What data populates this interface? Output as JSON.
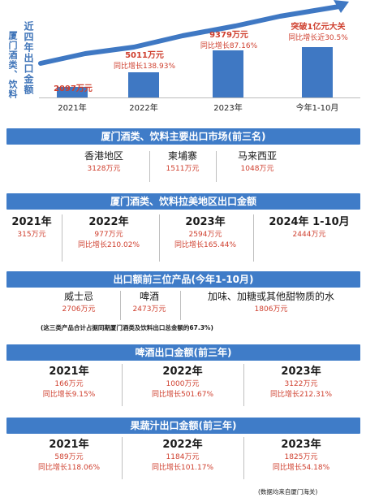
{
  "top_chart": {
    "title_col1": "厦门酒类、饮料",
    "title_col2": "近四年出口金额",
    "bars": [
      {
        "x": "2021年",
        "value": 2097,
        "value_text": "2097万元",
        "growth_text": ""
      },
      {
        "x": "2022年",
        "value": 5011,
        "value_text": "5011万元",
        "growth_text": "同比增长138.93%"
      },
      {
        "x": "2023年",
        "value": 9379,
        "value_text": "9379万元",
        "growth_text": "同比增长87.16%"
      },
      {
        "x": "今年1-10月",
        "value": 10000,
        "value_text": "突破1亿元大关",
        "growth_text": "同比增长近30.5%"
      }
    ]
  },
  "section1": {
    "title": "厦门酒类、饮料主要出口市场(前三名)",
    "items": [
      {
        "name": "香港地区",
        "value": "3128万元"
      },
      {
        "name": "柬埔寨",
        "value": "1511万元"
      },
      {
        "name": "马来西亚",
        "value": "1048万元"
      }
    ]
  },
  "section2": {
    "title": "厦门酒类、饮料拉美地区出口金额",
    "items": [
      {
        "year": "2021年",
        "value": "315万元",
        "growth": ""
      },
      {
        "year": "2022年",
        "value": "977万元",
        "growth": "同比增长210.02%"
      },
      {
        "year": "2023年",
        "value": "2594万元",
        "growth": "同比增长165.44%"
      },
      {
        "year": "2024年 1-10月",
        "value": "2444万元",
        "growth": ""
      }
    ]
  },
  "section3": {
    "title": "出口额前三位产品(今年1-10月)",
    "items": [
      {
        "name": "威士忌",
        "value": "2706万元"
      },
      {
        "name": "啤酒",
        "value": "2473万元"
      },
      {
        "name": "加味、加糖或其他甜物质的水",
        "value": "1806万元"
      }
    ],
    "note": "(这三类产品合计占据同期厦门酒类及饮料出口总金额的67.3%)"
  },
  "section4": {
    "title": "啤酒出口金额(前三年)",
    "items": [
      {
        "year": "2021年",
        "value": "166万元",
        "growth": "同比增长9.15%"
      },
      {
        "year": "2022年",
        "value": "1000万元",
        "growth": "同比增长501.67%"
      },
      {
        "year": "2023年",
        "value": "3122万元",
        "growth": "同比增长212.31%"
      }
    ]
  },
  "section5": {
    "title": "果蔬汁出口金额(前三年)",
    "items": [
      {
        "year": "2021年",
        "value": "589万元",
        "growth": "同比增长118.06%"
      },
      {
        "year": "2022年",
        "value": "1184万元",
        "growth": "同比增长101.17%"
      },
      {
        "year": "2023年",
        "value": "1825万元",
        "growth": "同比增长54.18%"
      }
    ]
  },
  "source_note": "(数据均来自厦门海关)",
  "chart_data": {
    "type": "bar",
    "title": "厦门酒类、饮料近四年出口金额",
    "categories": [
      "2021年",
      "2022年",
      "2023年",
      "今年1-10月"
    ],
    "values": [
      2097,
      5011,
      9379,
      10000
    ],
    "ylim": [
      0,
      10000
    ],
    "grid": false,
    "colors": {
      "bar": "#3f78c3",
      "arrow": "#3f78c3",
      "banner": "#3f7cc8",
      "highlight": "#cf3f2e"
    }
  }
}
